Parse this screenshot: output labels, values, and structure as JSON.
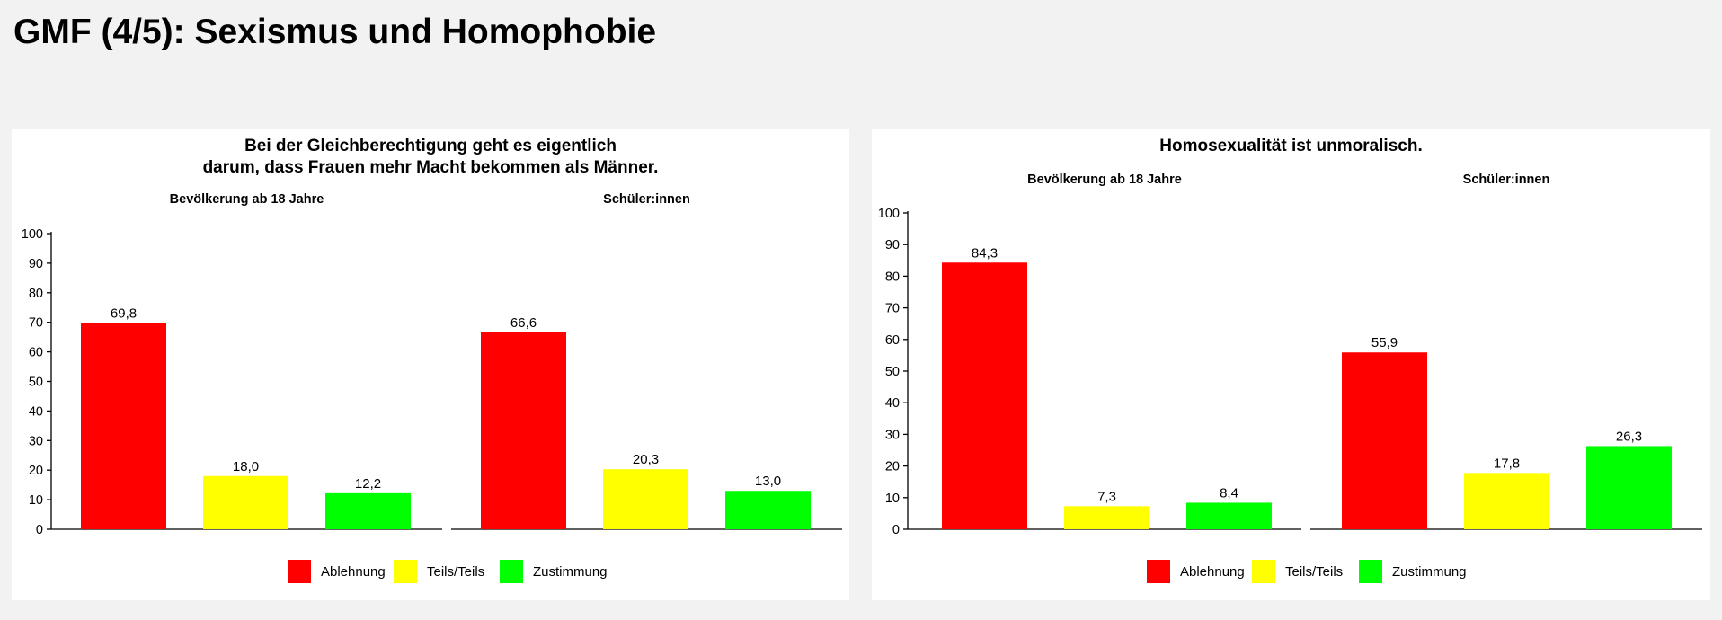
{
  "page": {
    "title": "GMF (4/5): Sexismus und Homophobie"
  },
  "chart_data": [
    {
      "type": "bar",
      "title_lines": [
        "Bei der Gleichberechtigung geht es eigentlich",
        "darum, dass Frauen mehr Macht bekommen als Männer."
      ],
      "facets": [
        "Bevölkerung ab 18 Jahre",
        "Schüler:innen"
      ],
      "categories": [
        "Ablehnung",
        "Teils/Teils",
        "Zustimmung"
      ],
      "colors": [
        "#ff0000",
        "#ffff00",
        "#00ff00"
      ],
      "values": [
        [
          69.8,
          18.0,
          12.2
        ],
        [
          66.6,
          20.3,
          13.0
        ]
      ],
      "value_labels": [
        [
          "69,8",
          "18,0",
          "12,2"
        ],
        [
          "66,6",
          "20,3",
          "13,0"
        ]
      ],
      "ylim": [
        0,
        100
      ],
      "yticks": [
        0,
        10,
        20,
        30,
        40,
        50,
        60,
        70,
        80,
        90,
        100
      ],
      "xlabel": "",
      "ylabel": "",
      "grid": false,
      "legend": {
        "placement": "bottom",
        "labels": [
          "Ablehnung",
          "Teils/Teils",
          "Zustimmung"
        ]
      }
    },
    {
      "type": "bar",
      "title_lines": [
        "Homosexualität ist unmoralisch."
      ],
      "facets": [
        "Bevölkerung ab 18 Jahre",
        "Schüler:innen"
      ],
      "categories": [
        "Ablehnung",
        "Teils/Teils",
        "Zustimmung"
      ],
      "colors": [
        "#ff0000",
        "#ffff00",
        "#00ff00"
      ],
      "values": [
        [
          84.3,
          7.3,
          8.4
        ],
        [
          55.9,
          17.8,
          26.3
        ]
      ],
      "value_labels": [
        [
          "84,3",
          "7,3",
          "8,4"
        ],
        [
          "55,9",
          "17,8",
          "26,3"
        ]
      ],
      "ylim": [
        0,
        100
      ],
      "yticks": [
        0,
        10,
        20,
        30,
        40,
        50,
        60,
        70,
        80,
        90,
        100
      ],
      "xlabel": "",
      "ylabel": "",
      "grid": false,
      "legend": {
        "placement": "bottom",
        "labels": [
          "Ablehnung",
          "Teils/Teils",
          "Zustimmung"
        ]
      }
    }
  ]
}
